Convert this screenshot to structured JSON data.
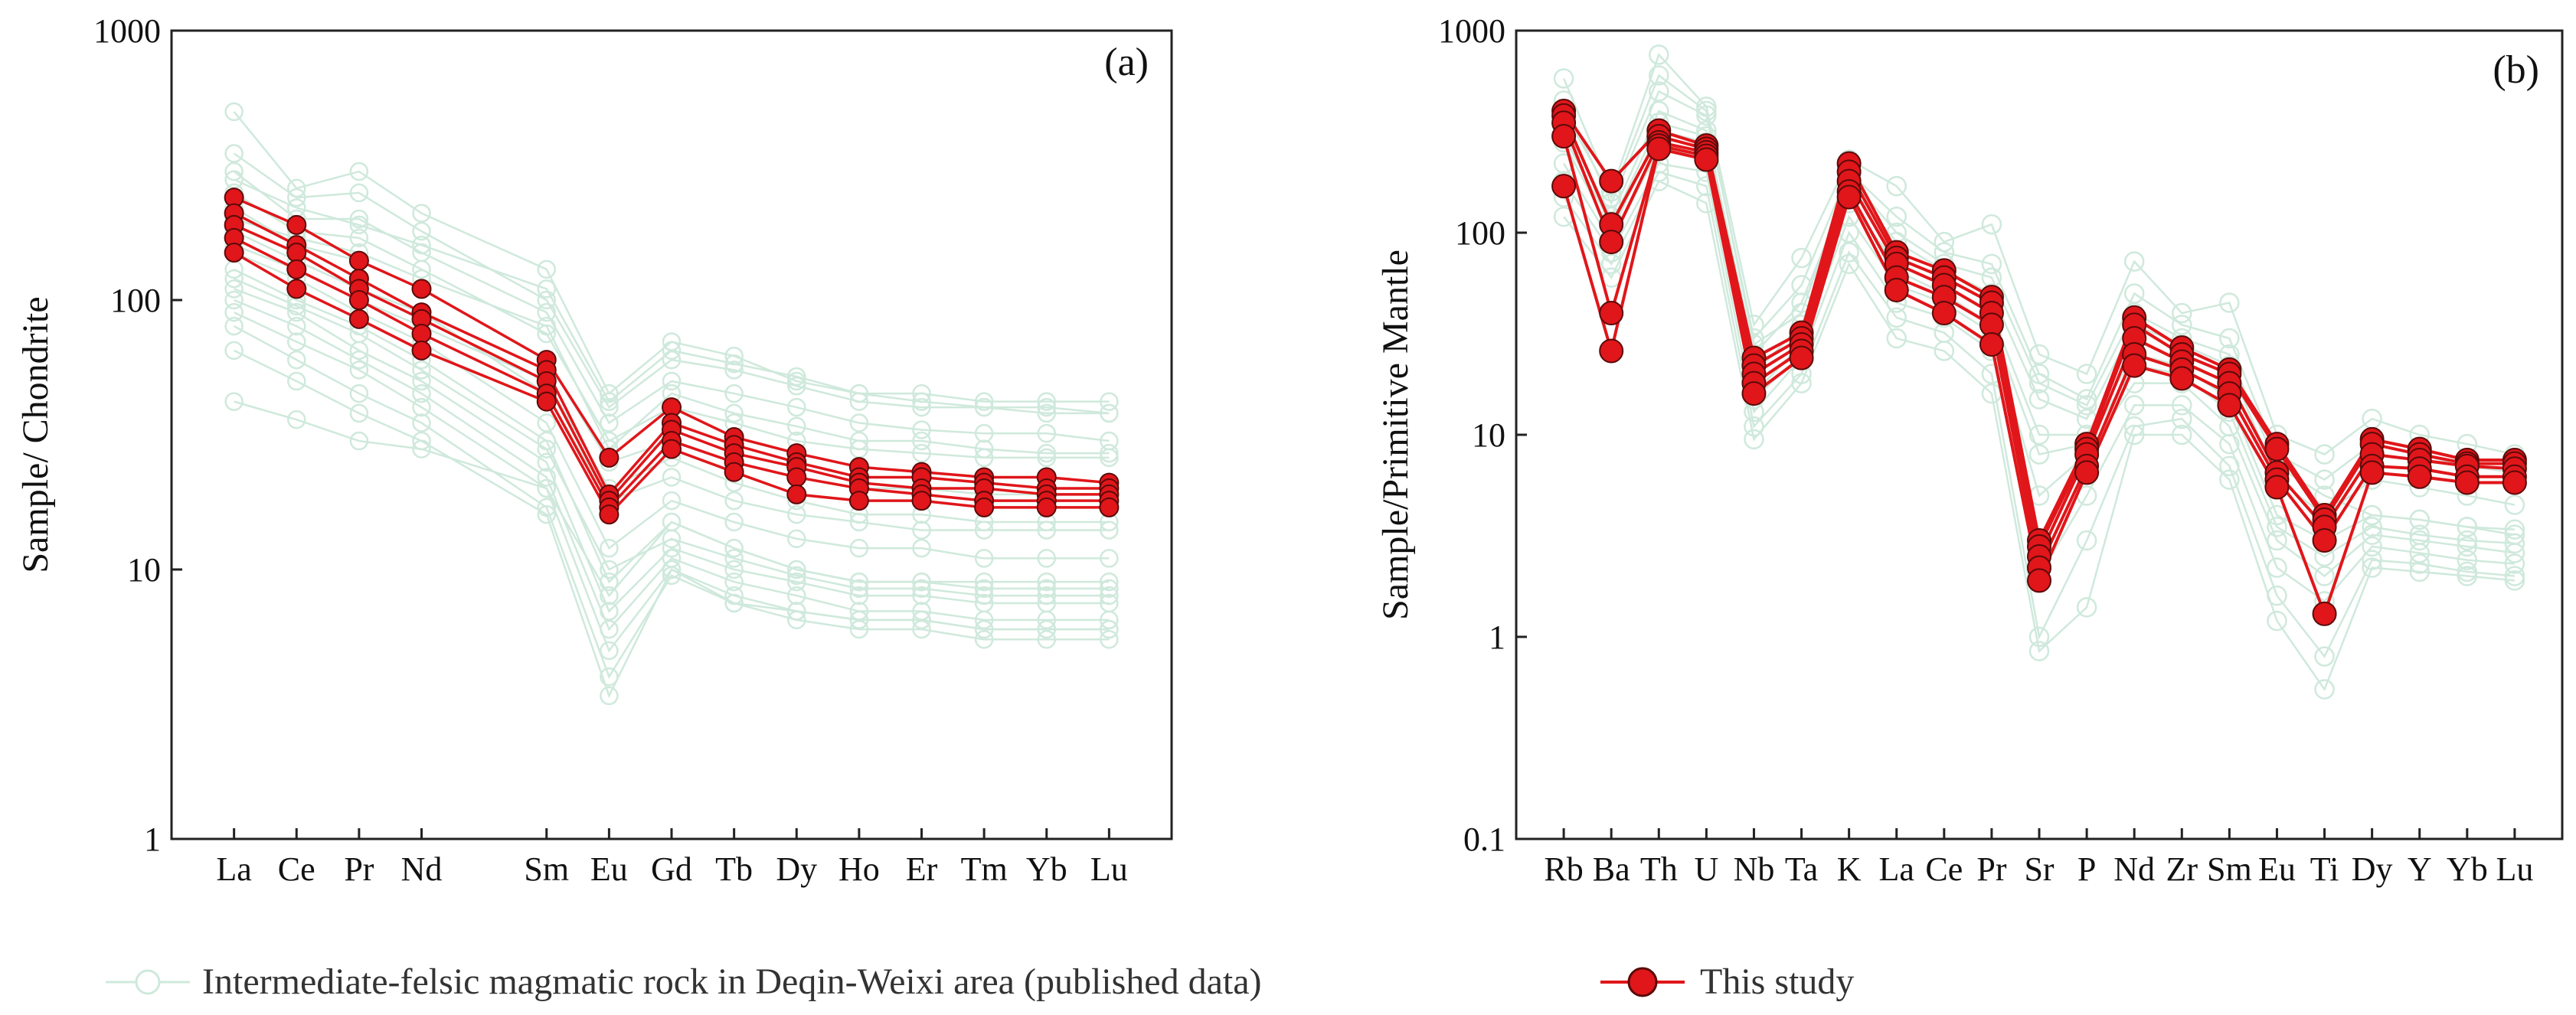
{
  "chart_data": [
    {
      "id": "a",
      "type": "line",
      "panel_label": "(a)",
      "title": "",
      "xlabel": "",
      "ylabel": "Sample/ Chondrite",
      "yscale": "log",
      "ylim": [
        1,
        1000
      ],
      "yticks": [
        "1",
        "10",
        "100",
        "1000"
      ],
      "categories": [
        "La",
        "Ce",
        "Pr",
        "Nd",
        "Sm",
        "Eu",
        "Gd",
        "Tb",
        "Dy",
        "Ho",
        "Er",
        "Tm",
        "Yb",
        "Lu"
      ],
      "x_positions": [
        1,
        2,
        3,
        4,
        6,
        7,
        8,
        9,
        10,
        11,
        12,
        13,
        14,
        15
      ],
      "xlim": [
        0,
        16
      ],
      "this_study": [
        {
          "name": "This study 1",
          "values": [
            240,
            190,
            140,
            110,
            60,
            26,
            40,
            31,
            27,
            24,
            23,
            22,
            22,
            21
          ]
        },
        {
          "name": "This study 2",
          "values": [
            210,
            160,
            120,
            90,
            55,
            19,
            35,
            29,
            25,
            22,
            22,
            21,
            20,
            20
          ]
        },
        {
          "name": "This study 3",
          "values": [
            190,
            150,
            110,
            85,
            50,
            18,
            33,
            27,
            24,
            21,
            20,
            20,
            19,
            19
          ]
        },
        {
          "name": "This study 4",
          "values": [
            170,
            130,
            100,
            75,
            45,
            17,
            30,
            25,
            22,
            20,
            19,
            18,
            18,
            18
          ]
        },
        {
          "name": "This study 5",
          "values": [
            150,
            110,
            85,
            65,
            42,
            16,
            28,
            23,
            19,
            18,
            18,
            17,
            17,
            17
          ]
        }
      ],
      "published_data": [
        {
          "name": "Published 1",
          "values": [
            500,
            260,
            300,
            210,
            130,
            45,
            70,
            62,
            50,
            45,
            45,
            42,
            42,
            42
          ]
        },
        {
          "name": "Published 2",
          "values": [
            350,
            240,
            250,
            180,
            100,
            40,
            60,
            55,
            48,
            42,
            40,
            40,
            38,
            38
          ]
        },
        {
          "name": "Published 3",
          "values": [
            300,
            200,
            200,
            150,
            90,
            35,
            50,
            45,
            40,
            35,
            33,
            32,
            32,
            30
          ]
        },
        {
          "name": "Published 4",
          "values": [
            250,
            180,
            170,
            130,
            75,
            30,
            40,
            35,
            30,
            28,
            27,
            26,
            26,
            26
          ]
        },
        {
          "name": "Published 5",
          "values": [
            220,
            160,
            140,
            110,
            60,
            25,
            30,
            25,
            22,
            20,
            20,
            19,
            19,
            19
          ]
        },
        {
          "name": "Published 6",
          "values": [
            180,
            140,
            110,
            90,
            45,
            18,
            22,
            18,
            16,
            15,
            14,
            14,
            14,
            14
          ]
        },
        {
          "name": "Published 7",
          "values": [
            150,
            120,
            90,
            70,
            35,
            12,
            18,
            15,
            13,
            12,
            12,
            11,
            11,
            11
          ]
        },
        {
          "name": "Published 8",
          "values": [
            130,
            100,
            80,
            60,
            30,
            9,
            15,
            12,
            10,
            9,
            9,
            9,
            9,
            9
          ]
        },
        {
          "name": "Published 9",
          "values": [
            110,
            90,
            65,
            50,
            25,
            7,
            12,
            10,
            9,
            8,
            8,
            7.5,
            7.5,
            7.5
          ]
        },
        {
          "name": "Published 10",
          "values": [
            100,
            80,
            60,
            45,
            22,
            6,
            11,
            9,
            8,
            7,
            7,
            6.5,
            6.5,
            6.5
          ]
        },
        {
          "name": "Published 11",
          "values": [
            90,
            70,
            55,
            40,
            20,
            5,
            10,
            8,
            7,
            6.5,
            6.5,
            6,
            6,
            6
          ]
        },
        {
          "name": "Published 12",
          "values": [
            80,
            60,
            45,
            35,
            17,
            4,
            9.5,
            7.5,
            6.5,
            6,
            6,
            5.5,
            5.5,
            5.5
          ]
        },
        {
          "name": "Published 13",
          "values": [
            65,
            50,
            38,
            30,
            16,
            3.4,
            10,
            7.5,
            7,
            6.5,
            6.5,
            6,
            6,
            6
          ]
        },
        {
          "name": "Published 14",
          "values": [
            42,
            36,
            30,
            28,
            20,
            8,
            15,
            12,
            10,
            9,
            9,
            8.5,
            8.5,
            8.5
          ]
        },
        {
          "name": "Published 15",
          "values": [
            280,
            220,
            190,
            160,
            110,
            42,
            65,
            58,
            52,
            45,
            42,
            40,
            40,
            38
          ]
        },
        {
          "name": "Published 16",
          "values": [
            200,
            170,
            150,
            120,
            80,
            28,
            45,
            38,
            34,
            30,
            30,
            28,
            27,
            27
          ]
        },
        {
          "name": "Published 17",
          "values": [
            160,
            130,
            100,
            80,
            50,
            20,
            26,
            21,
            18,
            16,
            16,
            15,
            15,
            15
          ]
        },
        {
          "name": "Published 18",
          "values": [
            120,
            95,
            75,
            55,
            28,
            10,
            13,
            11,
            9.5,
            8.5,
            8.5,
            8,
            8,
            8
          ]
        }
      ]
    },
    {
      "id": "b",
      "type": "line",
      "panel_label": "(b)",
      "title": "",
      "xlabel": "",
      "ylabel": "Sample/Primitive  Mantle",
      "yscale": "log",
      "ylim": [
        0.1,
        1000
      ],
      "yticks": [
        "0.1",
        "1",
        "10",
        "100",
        "1000"
      ],
      "categories": [
        "Rb",
        "Ba",
        "Th",
        "U",
        "Nb",
        "Ta",
        "K",
        "La",
        "Ce",
        "Pr",
        "Sr",
        "P",
        "Nd",
        "Zr",
        "Sm",
        "Eu",
        "Ti",
        "Dy",
        "Y",
        "Yb",
        "Lu"
      ],
      "x_positions": [
        1,
        2,
        3,
        4,
        5,
        6,
        7,
        8,
        9,
        10,
        11,
        12,
        13,
        14,
        15,
        16,
        17,
        18,
        19,
        20,
        21
      ],
      "xlim": [
        0,
        22
      ],
      "this_study": [
        {
          "name": "This study 1",
          "values": [
            400,
            180,
            320,
            270,
            24,
            32,
            220,
            80,
            65,
            48,
            3.0,
            9,
            38,
            27,
            21,
            9,
            4.0,
            9.5,
            8.5,
            7.5,
            7.5
          ]
        },
        {
          "name": "This study 2",
          "values": [
            380,
            110,
            300,
            260,
            22,
            30,
            200,
            75,
            60,
            45,
            2.8,
            8.5,
            35,
            25,
            20,
            8.5,
            3.8,
            9,
            8,
            7.2,
            7.2
          ]
        },
        {
          "name": "This study 3",
          "values": [
            350,
            90,
            280,
            250,
            20,
            28,
            180,
            70,
            55,
            40,
            2.5,
            8,
            30,
            23,
            18,
            6.5,
            3.5,
            8,
            7.5,
            7,
            6.8
          ]
        },
        {
          "name": "This study 4",
          "values": [
            300,
            40,
            270,
            240,
            18,
            26,
            160,
            60,
            48,
            35,
            2.2,
            7,
            25,
            21,
            16,
            6,
            3.0,
            7,
            6.8,
            6.2,
            6.2
          ]
        },
        {
          "name": "This study 5",
          "values": [
            170,
            26,
            260,
            230,
            16,
            24,
            150,
            52,
            40,
            28,
            1.9,
            6.5,
            22,
            19,
            14,
            5.5,
            1.3,
            6.5,
            6.2,
            5.8,
            5.8
          ]
        }
      ],
      "published_data": [
        {
          "name": "Published 1",
          "values": [
            580,
            160,
            760,
            420,
            35,
            75,
            230,
            170,
            90,
            110,
            25,
            20,
            72,
            40,
            45,
            10,
            8,
            12,
            10,
            9,
            8
          ]
        },
        {
          "name": "Published 2",
          "values": [
            450,
            140,
            500,
            380,
            30,
            55,
            200,
            120,
            80,
            70,
            20,
            15,
            50,
            35,
            30,
            8,
            6,
            9,
            8,
            7,
            6.5
          ]
        },
        {
          "name": "Published 3",
          "values": [
            350,
            120,
            400,
            320,
            25,
            45,
            170,
            90,
            65,
            50,
            15,
            12,
            35,
            28,
            22,
            6,
            4,
            6,
            5.5,
            5,
            4.5
          ]
        },
        {
          "name": "Published 4",
          "values": [
            280,
            100,
            320,
            280,
            20,
            35,
            140,
            70,
            55,
            40,
            10,
            10,
            25,
            22,
            15,
            4,
            3,
            4,
            3.8,
            3.5,
            3.2
          ]
        },
        {
          "name": "Published 5",
          "values": [
            220,
            90,
            260,
            240,
            16,
            28,
            120,
            55,
            45,
            32,
            5,
            8,
            18,
            18,
            11,
            3,
            2,
            3.2,
            3,
            2.8,
            2.6
          ]
        },
        {
          "name": "Published 6",
          "values": [
            180,
            80,
            220,
            200,
            13,
            24,
            100,
            45,
            38,
            26,
            2,
            5,
            14,
            14,
            9,
            2.2,
            1.5,
            2.8,
            2.6,
            2.4,
            2.3
          ]
        },
        {
          "name": "Published 7",
          "values": [
            150,
            70,
            200,
            170,
            11,
            20,
            80,
            38,
            32,
            20,
            1.0,
            3,
            11,
            12,
            7,
            1.6,
            0.8,
            2.4,
            2.3,
            2.1,
            2.0
          ]
        },
        {
          "name": "Published 8",
          "values": [
            120,
            60,
            180,
            140,
            9.5,
            18,
            70,
            30,
            26,
            16,
            0.85,
            1.4,
            10,
            10,
            6,
            1.2,
            0.55,
            2.2,
            2.1,
            2.0,
            1.9
          ]
        },
        {
          "name": "Published 9",
          "values": [
            400,
            150,
            600,
            400,
            28,
            40,
            190,
            100,
            70,
            60,
            18,
            14,
            40,
            30,
            25,
            7,
            5,
            4,
            3.8,
            3.5,
            3.4
          ]
        },
        {
          "name": "Published 10",
          "values": [
            300,
            110,
            350,
            300,
            15,
            25,
            150,
            65,
            50,
            35,
            8,
            9,
            22,
            20,
            13,
            3.5,
            2.5,
            3.5,
            3.2,
            3.0,
            2.9
          ]
        }
      ]
    }
  ],
  "legend": {
    "published_label": "Intermediate-felsic magmatic rock in Deqin-Weixi area (published data)",
    "this_study_label": "This study"
  },
  "colors": {
    "published": "#cfe9dc",
    "this_study_line": "#e0161a",
    "this_study_marker": "#e0161a",
    "this_study_marker_edge": "#5a0a0a"
  }
}
